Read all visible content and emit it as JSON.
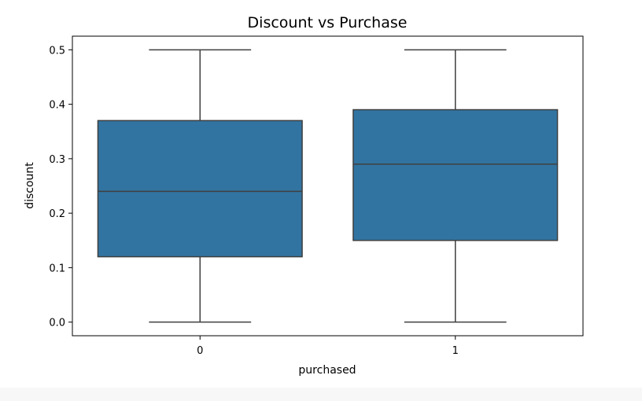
{
  "chart_data": {
    "type": "box",
    "title": "Discount vs Purchase",
    "xlabel": "purchased",
    "ylabel": "discount",
    "categories": [
      "0",
      "1"
    ],
    "boxes": [
      {
        "category": "0",
        "min": 0.0,
        "q1": 0.12,
        "median": 0.24,
        "q3": 0.37,
        "max": 0.5
      },
      {
        "category": "1",
        "min": 0.0,
        "q1": 0.15,
        "median": 0.29,
        "q3": 0.39,
        "max": 0.5
      }
    ],
    "ylim": [
      -0.025,
      0.525
    ],
    "yticks": [
      0.0,
      0.1,
      0.2,
      0.3,
      0.4,
      0.5
    ],
    "ytick_labels": [
      "0.0",
      "0.1",
      "0.2",
      "0.3",
      "0.4",
      "0.5"
    ],
    "grid": false,
    "legend": "none",
    "colors": {
      "box_fill": "#3274a1",
      "line": "#3f3f3f",
      "axes": "#000000"
    }
  }
}
